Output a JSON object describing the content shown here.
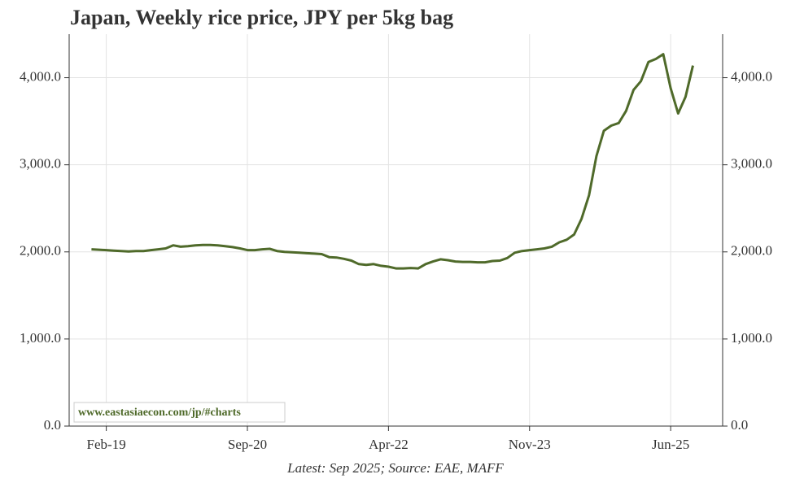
{
  "chart_data": {
    "type": "line",
    "title": "Japan, Weekly rice price, JPY per 5kg bag",
    "footnote": "Latest: Sep 2025; Source: EAE, MAFF",
    "watermark": "www.eastasiaecon.com/jp/#charts",
    "grid": true,
    "xlim": [
      "2018-09",
      "2026-01"
    ],
    "xticks": [
      {
        "value": "2019-02",
        "label": "Feb-19"
      },
      {
        "value": "2020-09",
        "label": "Sep-20"
      },
      {
        "value": "2022-04",
        "label": "Apr-22"
      },
      {
        "value": "2023-11",
        "label": "Nov-23"
      },
      {
        "value": "2025-06",
        "label": "Jun-25"
      }
    ],
    "ylim": [
      0,
      4500
    ],
    "yticks": [
      {
        "value": 0,
        "label": "0.0"
      },
      {
        "value": 1000,
        "label": "1,000.0"
      },
      {
        "value": 2000,
        "label": "2,000.0"
      },
      {
        "value": 3000,
        "label": "3,000.0"
      },
      {
        "value": 4000,
        "label": "4,000.0"
      }
    ],
    "x": [
      "2018-12",
      "2019-01",
      "2019-02",
      "2019-03",
      "2019-04",
      "2019-05",
      "2019-06",
      "2019-07",
      "2019-08",
      "2019-09",
      "2019-10",
      "2019-11",
      "2019-12",
      "2020-01",
      "2020-02",
      "2020-03",
      "2020-04",
      "2020-05",
      "2020-06",
      "2020-07",
      "2020-08",
      "2020-09",
      "2020-10",
      "2020-11",
      "2020-12",
      "2021-01",
      "2021-02",
      "2021-03",
      "2021-04",
      "2021-05",
      "2021-06",
      "2021-07",
      "2021-08",
      "2021-09",
      "2021-10",
      "2021-11",
      "2021-12",
      "2022-01",
      "2022-02",
      "2022-03",
      "2022-04",
      "2022-05",
      "2022-06",
      "2022-07",
      "2022-08",
      "2022-09",
      "2022-10",
      "2022-11",
      "2022-12",
      "2023-01",
      "2023-02",
      "2023-03",
      "2023-04",
      "2023-05",
      "2023-06",
      "2023-07",
      "2023-08",
      "2023-09",
      "2023-10",
      "2023-11",
      "2023-12",
      "2024-01",
      "2024-02",
      "2024-03",
      "2024-04",
      "2024-05",
      "2024-06",
      "2024-07",
      "2024-08",
      "2024-09",
      "2024-10",
      "2024-11",
      "2024-12",
      "2025-01",
      "2025-02",
      "2025-03",
      "2025-04",
      "2025-05",
      "2025-06",
      "2025-07",
      "2025-08",
      "2025-09"
    ],
    "series": [
      {
        "color": "#4f6a2a",
        "values": [
          2030,
          2025,
          2020,
          2015,
          2010,
          2005,
          2010,
          2010,
          2020,
          2030,
          2040,
          2075,
          2060,
          2065,
          2075,
          2080,
          2080,
          2075,
          2065,
          2055,
          2040,
          2020,
          2020,
          2030,
          2035,
          2010,
          2000,
          1995,
          1990,
          1985,
          1980,
          1975,
          1940,
          1935,
          1920,
          1900,
          1860,
          1850,
          1860,
          1840,
          1830,
          1810,
          1810,
          1815,
          1810,
          1860,
          1890,
          1915,
          1905,
          1890,
          1885,
          1885,
          1880,
          1880,
          1895,
          1900,
          1930,
          1990,
          2010,
          2020,
          2030,
          2040,
          2060,
          2110,
          2140,
          2200,
          2380,
          2650,
          3100,
          3390,
          3450,
          3480,
          3620,
          3860,
          3960,
          4180,
          4215,
          4270,
          3880,
          3590,
          3780,
          4140
        ]
      }
    ]
  }
}
